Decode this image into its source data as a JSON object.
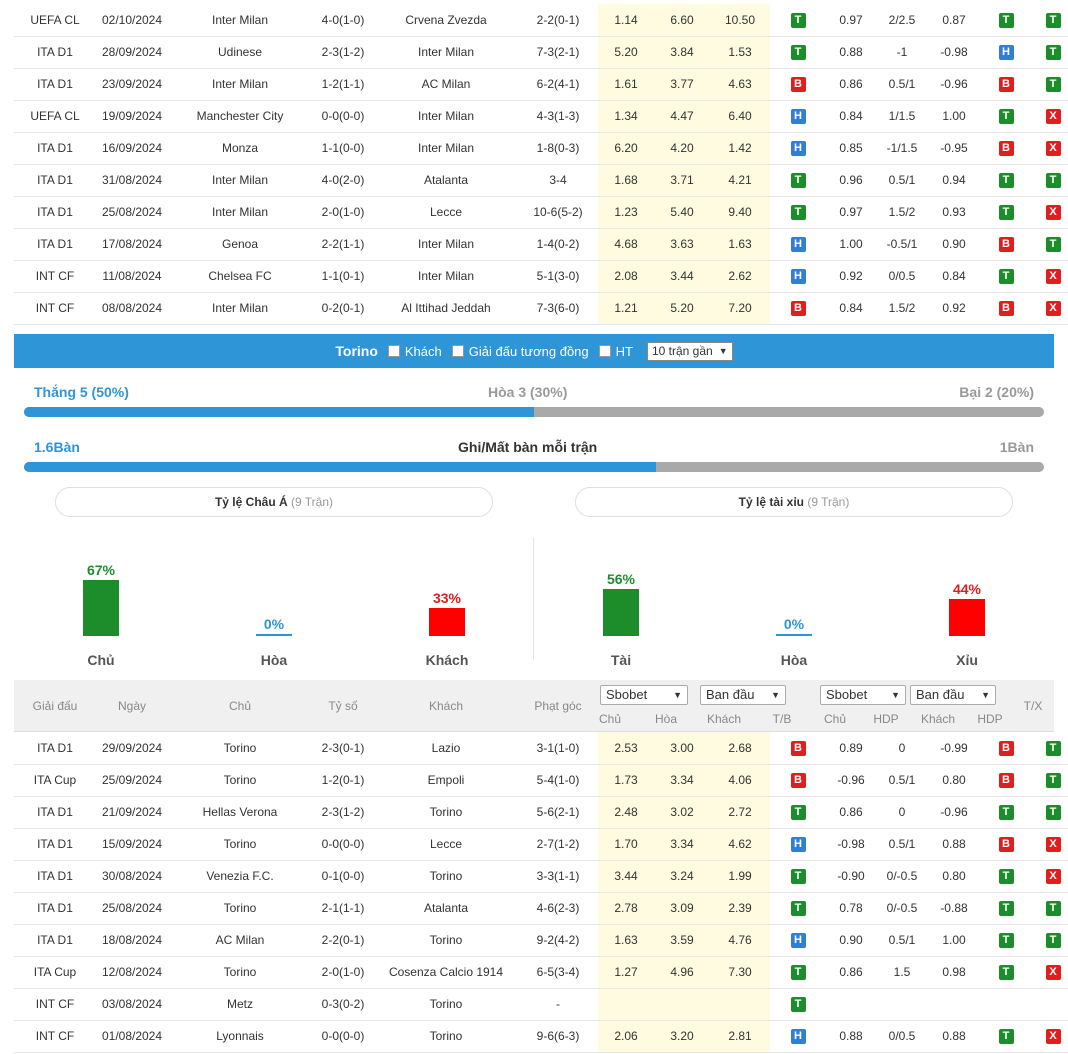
{
  "top_table": [
    {
      "league": "UEFA CL",
      "date": "02/10/2024",
      "home": "Inter Milan",
      "home_hl": true,
      "score": "4-0(1-0)",
      "away": "Crvena Zvezda",
      "away_hl": false,
      "corners": "2-2(0-1)",
      "o1": "1.14",
      "o2": "6.60",
      "o3": "10.50",
      "r1": "T",
      "h1": "0.97",
      "h2": "2/2.5",
      "h3": "0.87",
      "r2": "T",
      "r3": "T"
    },
    {
      "league": "ITA D1",
      "date": "28/09/2024",
      "home": "Udinese",
      "home_hl": false,
      "score": "2-3(1-2)",
      "away": "Inter Milan",
      "away_hl": true,
      "corners": "7-3(2-1)",
      "o1": "5.20",
      "o2": "3.84",
      "o3": "1.53",
      "r1": "T",
      "h1": "0.88",
      "h2": "-1",
      "h3": "-0.98",
      "r2": "H",
      "r3": "T"
    },
    {
      "league": "ITA D1",
      "date": "23/09/2024",
      "home": "Inter Milan",
      "home_hl": true,
      "score": "1-2(1-1)",
      "away": "AC Milan",
      "away_hl": false,
      "corners": "6-2(4-1)",
      "o1": "1.61",
      "o2": "3.77",
      "o3": "4.63",
      "r1": "B",
      "h1": "0.86",
      "h2": "0.5/1",
      "h3": "-0.96",
      "r2": "B",
      "r3": "T"
    },
    {
      "league": "UEFA CL",
      "date": "19/09/2024",
      "home": "Manchester City",
      "home_hl": false,
      "score": "0-0(0-0)",
      "away": "Inter Milan",
      "away_hl": true,
      "corners": "4-3(1-3)",
      "o1": "1.34",
      "o2": "4.47",
      "o3": "6.40",
      "r1": "H",
      "h1": "0.84",
      "h2": "1/1.5",
      "h3": "1.00",
      "r2": "T",
      "r3": "X"
    },
    {
      "league": "ITA D1",
      "date": "16/09/2024",
      "home": "Monza",
      "home_hl": false,
      "score": "1-1(0-0)",
      "away": "Inter Milan",
      "away_hl": true,
      "corners": "1-8(0-3)",
      "o1": "6.20",
      "o2": "4.20",
      "o3": "1.42",
      "r1": "H",
      "h1": "0.85",
      "h2": "-1/1.5",
      "h3": "-0.95",
      "r2": "B",
      "r3": "X"
    },
    {
      "league": "ITA D1",
      "date": "31/08/2024",
      "home": "Inter Milan",
      "home_hl": true,
      "score": "4-0(2-0)",
      "away": "Atalanta",
      "away_hl": false,
      "corners": "3-4",
      "o1": "1.68",
      "o2": "3.71",
      "o3": "4.21",
      "r1": "T",
      "h1": "0.96",
      "h2": "0.5/1",
      "h3": "0.94",
      "r2": "T",
      "r3": "T"
    },
    {
      "league": "ITA D1",
      "date": "25/08/2024",
      "home": "Inter Milan",
      "home_hl": true,
      "score": "2-0(1-0)",
      "away": "Lecce",
      "away_hl": false,
      "corners": "10-6(5-2)",
      "o1": "1.23",
      "o2": "5.40",
      "o3": "9.40",
      "r1": "T",
      "h1": "0.97",
      "h2": "1.5/2",
      "h3": "0.93",
      "r2": "T",
      "r3": "X"
    },
    {
      "league": "ITA D1",
      "date": "17/08/2024",
      "home": "Genoa",
      "home_hl": false,
      "score": "2-2(1-1)",
      "away": "Inter Milan",
      "away_hl": true,
      "corners": "1-4(0-2)",
      "o1": "4.68",
      "o2": "3.63",
      "o3": "1.63",
      "r1": "H",
      "h1": "1.00",
      "h2": "-0.5/1",
      "h3": "0.90",
      "r2": "B",
      "r3": "T"
    },
    {
      "league": "INT CF",
      "date": "11/08/2024",
      "home": "Chelsea FC",
      "home_hl": false,
      "score": "1-1(0-1)",
      "away": "Inter Milan",
      "away_hl": true,
      "corners": "5-1(3-0)",
      "o1": "2.08",
      "o2": "3.44",
      "o3": "2.62",
      "r1": "H",
      "h1": "0.92",
      "h2": "0/0.5",
      "h3": "0.84",
      "r2": "T",
      "r3": "X"
    },
    {
      "league": "INT CF",
      "date": "08/08/2024",
      "home": "Inter Milan",
      "home_hl": true,
      "score": "0-2(0-1)",
      "away": "Al Ittihad Jeddah",
      "away_hl": false,
      "corners": "7-3(6-0)",
      "o1": "1.21",
      "o2": "5.20",
      "o3": "7.20",
      "r1": "B",
      "h1": "0.84",
      "h2": "1.5/2",
      "h3": "0.92",
      "r2": "B",
      "r3": "X"
    }
  ],
  "filter": {
    "team": "Torino",
    "opt_away": "Khách",
    "opt_same_league": "Giải đấu tương đồng",
    "opt_ht": "HT",
    "range_select": "10 trận gần"
  },
  "summary": {
    "win": "Thắng 5 (50%)",
    "draw": "Hòa 3 (30%)",
    "loss": "Bại 2 (20%)",
    "win_fraction": 0.5,
    "goals_for": "1.6Bàn",
    "goals_title": "Ghi/Mất bàn mỗi trận",
    "goals_against": "1Bàn",
    "goals_fraction": 0.62
  },
  "asian": {
    "title": "Tỷ lệ Châu Á",
    "count": "(9 Trận)",
    "home_pct": "67%",
    "home_label": "Chủ",
    "home_value": 67,
    "draw_pct": "0%",
    "draw_label": "Hòa",
    "draw_value": 0,
    "away_pct": "33%",
    "away_label": "Khách",
    "away_value": 33
  },
  "ou": {
    "title": "Tỷ lệ tài xỉu",
    "count": "(9 Trận)",
    "over_pct": "56%",
    "over_label": "Tài",
    "over_value": 56,
    "draw_pct": "0%",
    "draw_label": "Hòa",
    "draw_value": 0,
    "under_pct": "44%",
    "under_label": "Xỉu",
    "under_value": 44
  },
  "header": {
    "league": "Giải đấu",
    "date": "Ngày",
    "home": "Chủ",
    "score": "Tỷ số",
    "away": "Khách",
    "corners": "Phạt góc",
    "book1": "Sbobet",
    "mode1": "Ban đầu",
    "book2": "Sbobet",
    "mode2": "Ban đầu",
    "sub_home": "Chủ",
    "sub_draw": "Hòa",
    "sub_away": "Khách",
    "sub_tb": "T/B",
    "sub_home2": "Chủ",
    "sub_hdp": "HDP",
    "sub_away2": "Khách",
    "sub_hdp2": "HDP",
    "tx": "T/X"
  },
  "bottom_table": [
    {
      "league": "ITA D1",
      "date": "29/09/2024",
      "home": "Torino",
      "home_hl": true,
      "score": "2-3(0-1)",
      "away": "Lazio",
      "away_hl": false,
      "corners": "3-1(1-0)",
      "o1": "2.53",
      "o2": "3.00",
      "o3": "2.68",
      "r1": "B",
      "h1": "0.89",
      "h2": "0",
      "h3": "-0.99",
      "r2": "B",
      "r3": "T"
    },
    {
      "league": "ITA Cup",
      "date": "25/09/2024",
      "home": "Torino",
      "home_hl": true,
      "score": "1-2(0-1)",
      "away": "Empoli",
      "away_hl": false,
      "corners": "5-4(1-0)",
      "o1": "1.73",
      "o2": "3.34",
      "o3": "4.06",
      "r1": "B",
      "h1": "-0.96",
      "h2": "0.5/1",
      "h3": "0.80",
      "r2": "B",
      "r3": "T"
    },
    {
      "league": "ITA D1",
      "date": "21/09/2024",
      "home": "Hellas Verona",
      "home_hl": false,
      "score": "2-3(1-2)",
      "away": "Torino",
      "away_hl": true,
      "corners": "5-6(2-1)",
      "o1": "2.48",
      "o2": "3.02",
      "o3": "2.72",
      "r1": "T",
      "h1": "0.86",
      "h2": "0",
      "h3": "-0.96",
      "r2": "T",
      "r3": "T"
    },
    {
      "league": "ITA D1",
      "date": "15/09/2024",
      "home": "Torino",
      "home_hl": true,
      "score": "0-0(0-0)",
      "away": "Lecce",
      "away_hl": false,
      "corners": "2-7(1-2)",
      "o1": "1.70",
      "o2": "3.34",
      "o3": "4.62",
      "r1": "H",
      "h1": "-0.98",
      "h2": "0.5/1",
      "h3": "0.88",
      "r2": "B",
      "r3": "X"
    },
    {
      "league": "ITA D1",
      "date": "30/08/2024",
      "home": "Venezia F.C.",
      "home_hl": false,
      "score": "0-1(0-0)",
      "away": "Torino",
      "away_hl": true,
      "corners": "3-3(1-1)",
      "o1": "3.44",
      "o2": "3.24",
      "o3": "1.99",
      "r1": "T",
      "h1": "-0.90",
      "h2": "0/-0.5",
      "h3": "0.80",
      "r2": "T",
      "r3": "X"
    },
    {
      "league": "ITA D1",
      "date": "25/08/2024",
      "home": "Torino",
      "home_hl": true,
      "score": "2-1(1-1)",
      "away": "Atalanta",
      "away_hl": false,
      "corners": "4-6(2-3)",
      "o1": "2.78",
      "o2": "3.09",
      "o3": "2.39",
      "r1": "T",
      "h1": "0.78",
      "h2": "0/-0.5",
      "h3": "-0.88",
      "r2": "T",
      "r3": "T"
    },
    {
      "league": "ITA D1",
      "date": "18/08/2024",
      "home": "AC Milan",
      "home_hl": false,
      "score": "2-2(0-1)",
      "away": "Torino",
      "away_hl": true,
      "corners": "9-2(4-2)",
      "o1": "1.63",
      "o2": "3.59",
      "o3": "4.76",
      "r1": "H",
      "h1": "0.90",
      "h2": "0.5/1",
      "h3": "1.00",
      "r2": "T",
      "r3": "T"
    },
    {
      "league": "ITA Cup",
      "date": "12/08/2024",
      "home": "Torino",
      "home_hl": true,
      "score": "2-0(1-0)",
      "away": "Cosenza Calcio 1914",
      "away_hl": false,
      "corners": "6-5(3-4)",
      "o1": "1.27",
      "o2": "4.96",
      "o3": "7.30",
      "r1": "T",
      "h1": "0.86",
      "h2": "1.5",
      "h3": "0.98",
      "r2": "T",
      "r3": "X"
    },
    {
      "league": "INT CF",
      "date": "03/08/2024",
      "home": "Metz",
      "home_hl": false,
      "score": "0-3(0-2)",
      "away": "Torino",
      "away_hl": true,
      "corners": "-",
      "o1": "",
      "o2": "",
      "o3": "",
      "r1": "T",
      "h1": "",
      "h2": "",
      "h3": "",
      "r2": "",
      "r3": ""
    },
    {
      "league": "INT CF",
      "date": "01/08/2024",
      "home": "Lyonnais",
      "home_hl": false,
      "score": "0-0(0-0)",
      "away": "Torino",
      "away_hl": true,
      "corners": "9-6(6-3)",
      "o1": "2.06",
      "o2": "3.20",
      "o3": "2.81",
      "r1": "H",
      "h1": "0.88",
      "h2": "0/0.5",
      "h3": "0.88",
      "r2": "T",
      "r3": "X"
    }
  ],
  "colors": {
    "accent": "#2e95d6",
    "win": "#1d8d2c",
    "loss": "#e11d1d",
    "draw": "#2f7fd5",
    "highlight": "#ee6c3e"
  }
}
